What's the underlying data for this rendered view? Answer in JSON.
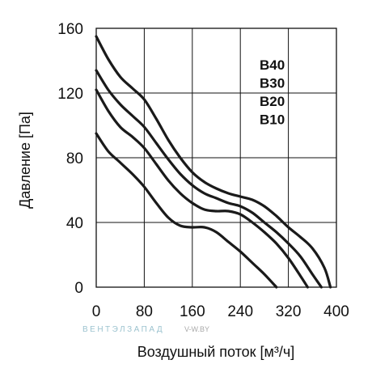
{
  "chart_data": {
    "type": "line",
    "xlabel": "Воздушный поток [м³/ч]",
    "ylabel": "Давление [Па]",
    "xlim": [
      0,
      400
    ],
    "ylim": [
      0,
      160
    ],
    "xticks": [
      "0",
      "80",
      "160",
      "240",
      "320",
      "400"
    ],
    "yticks": [
      "0",
      "40",
      "80",
      "120",
      "160"
    ],
    "grid": true,
    "legend_position": "top-right",
    "series": [
      {
        "name": "B40",
        "x": [
          0,
          20,
          40,
          60,
          80,
          100,
          120,
          140,
          160,
          180,
          200,
          220,
          240,
          260,
          280,
          300,
          320,
          340,
          360,
          380,
          390
        ],
        "y": [
          155,
          141,
          130,
          123,
          116,
          104,
          91,
          80,
          71,
          65,
          61,
          58,
          56,
          54,
          50,
          44,
          37,
          31,
          24,
          12,
          0
        ]
      },
      {
        "name": "B30",
        "x": [
          0,
          20,
          40,
          60,
          80,
          100,
          120,
          140,
          160,
          180,
          200,
          220,
          240,
          260,
          280,
          300,
          320,
          340,
          360,
          375
        ],
        "y": [
          134,
          122,
          113,
          106,
          99,
          89,
          79,
          70,
          63,
          58,
          55,
          52,
          50,
          46,
          40,
          34,
          27,
          19,
          8,
          0
        ]
      },
      {
        "name": "B20",
        "x": [
          0,
          20,
          40,
          60,
          80,
          100,
          120,
          140,
          160,
          180,
          200,
          220,
          240,
          260,
          280,
          300,
          320,
          340,
          352
        ],
        "y": [
          122,
          109,
          99,
          93,
          86,
          76,
          66,
          58,
          52,
          48,
          47,
          47,
          45,
          40,
          34,
          27,
          18,
          7,
          0
        ]
      },
      {
        "name": "B10",
        "x": [
          0,
          20,
          40,
          60,
          80,
          100,
          120,
          140,
          160,
          180,
          200,
          220,
          240,
          260,
          280,
          300
        ],
        "y": [
          95,
          84,
          77,
          70,
          62,
          52,
          43,
          38,
          37,
          37,
          34,
          28,
          22,
          15,
          8,
          0
        ]
      }
    ],
    "line_color": "#1a1a1a"
  },
  "watermark": {
    "brand": "ВЕНТЭЛЗАПАД",
    "site": "V-W.BY",
    "color": "#9cc3cf"
  }
}
